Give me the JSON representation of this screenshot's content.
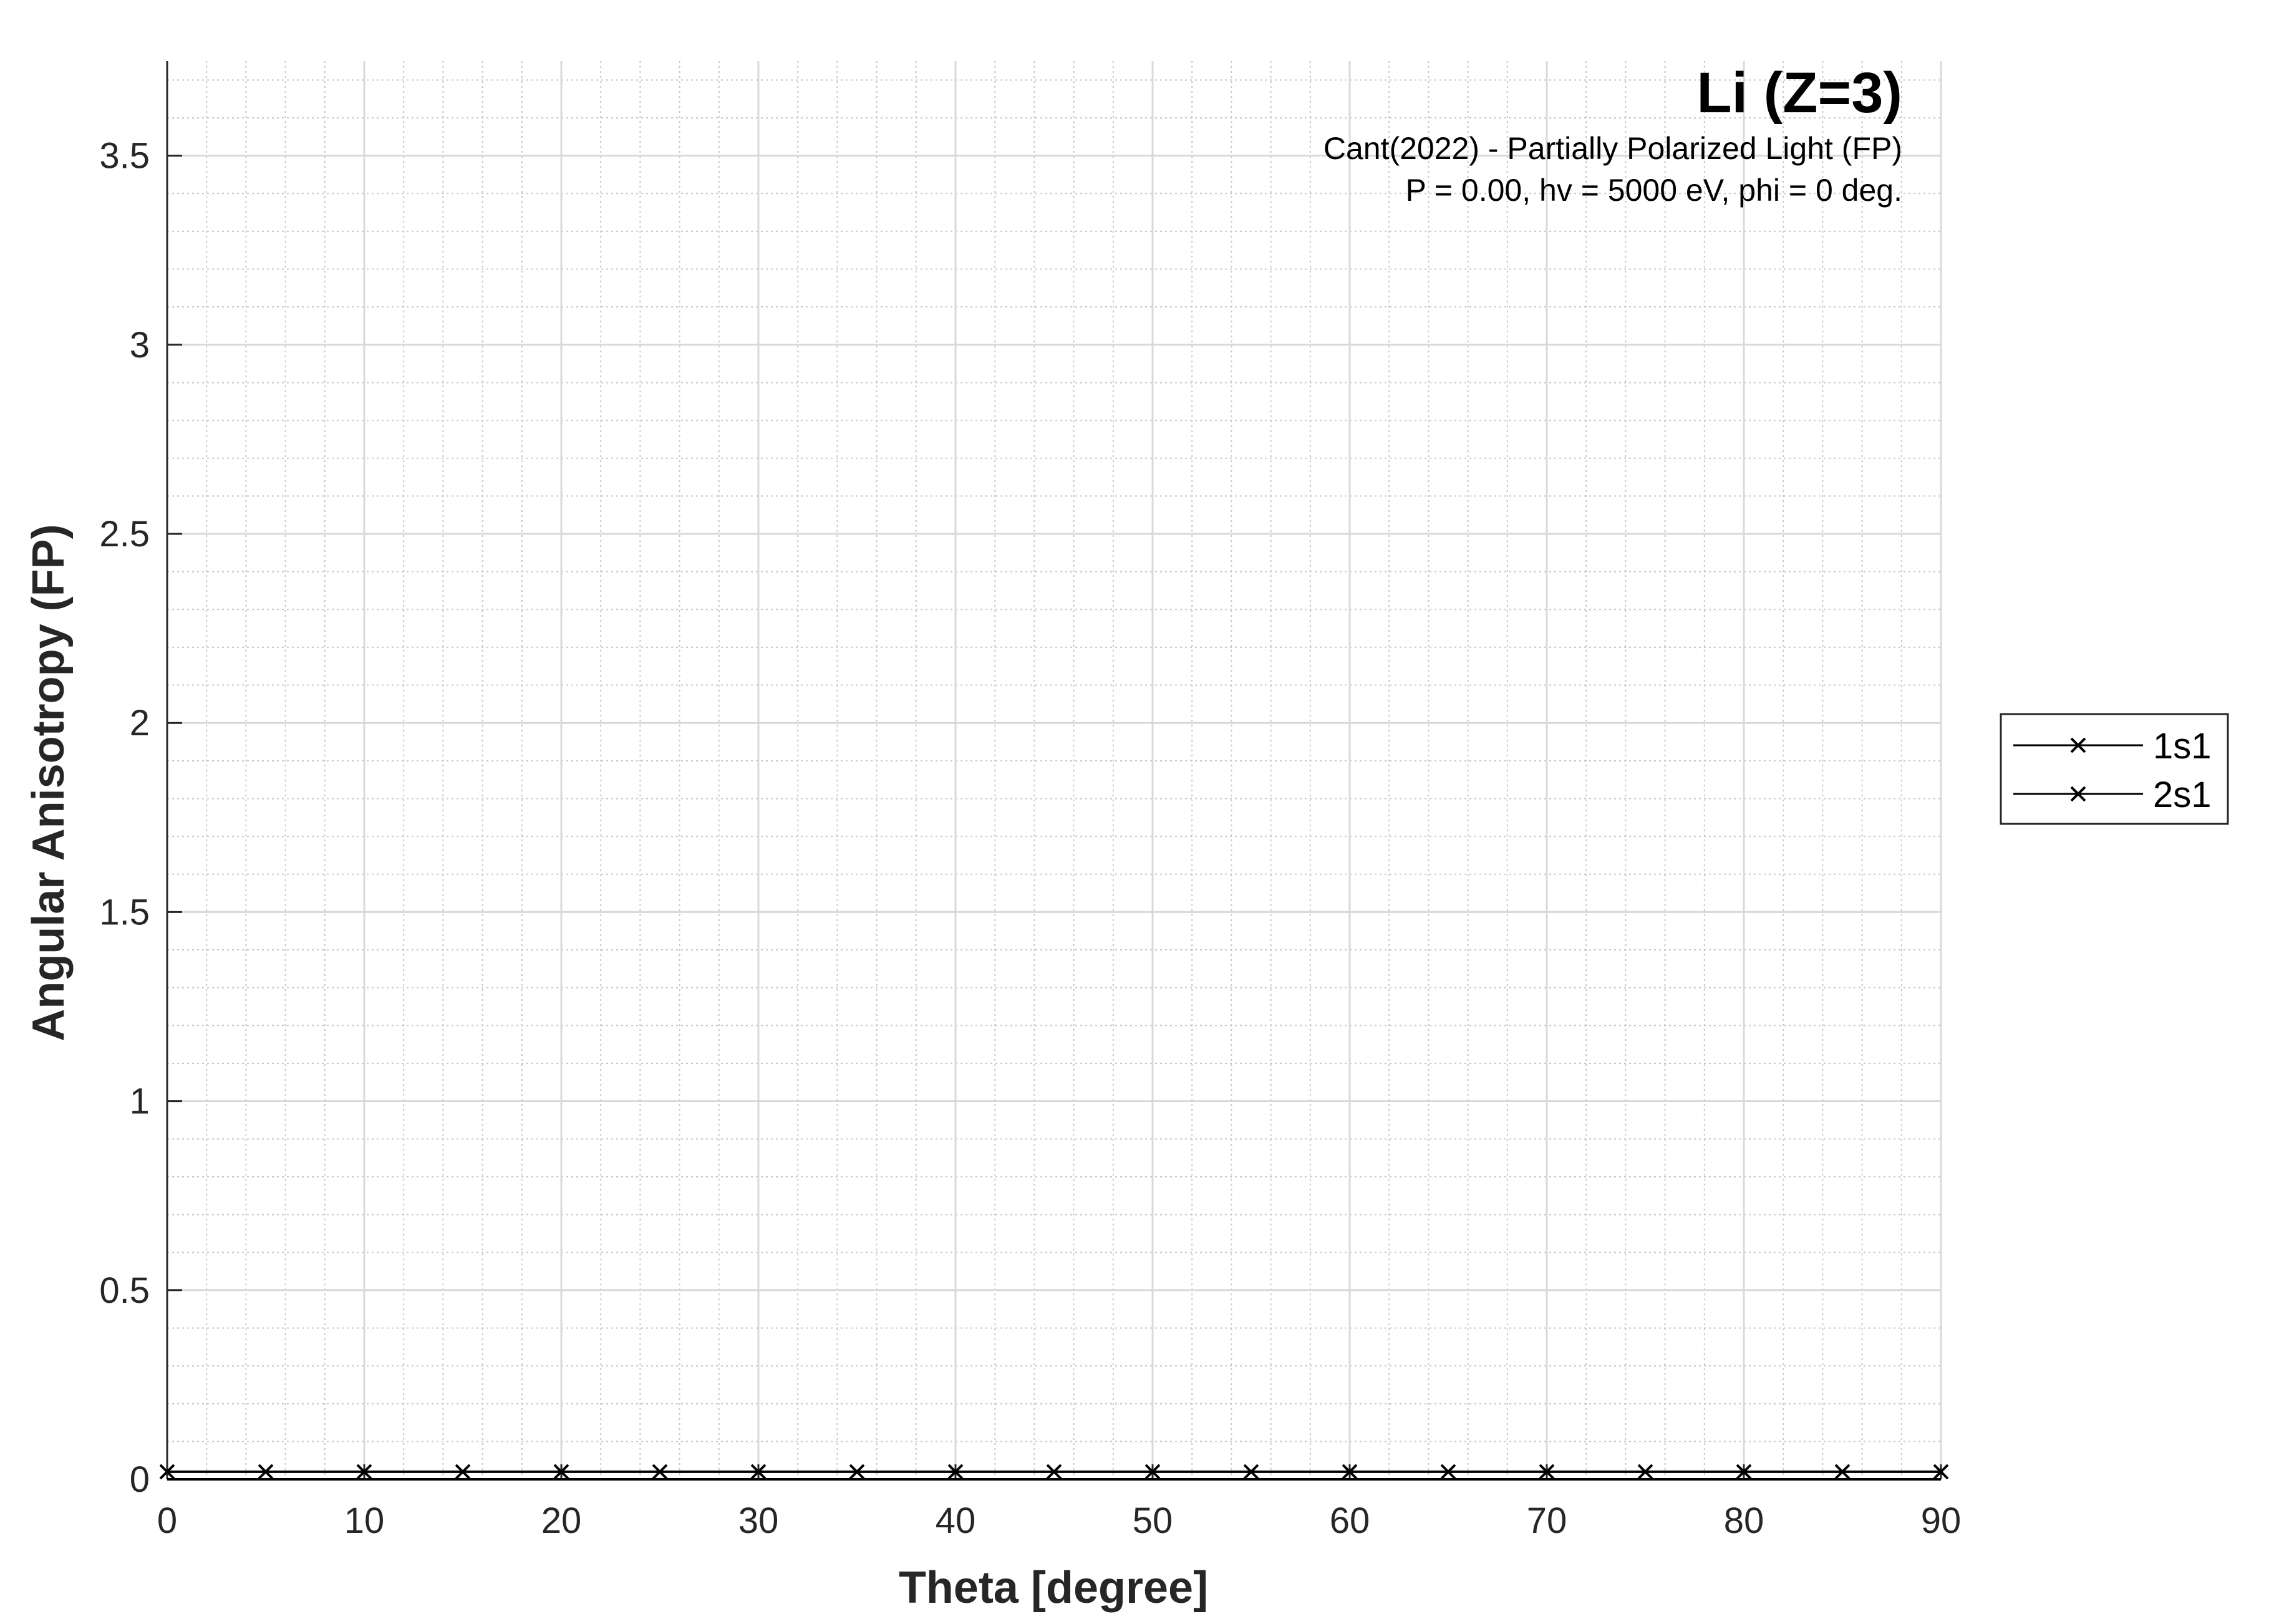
{
  "chart_data": {
    "type": "line",
    "title": "Li (Z=3)",
    "subtitle_lines": [
      "Cant(2022) - Partially Polarized Light (FP)",
      "P = 0.00, hv = 5000 eV, phi = 0 deg."
    ],
    "xlabel": "Theta [degree]",
    "ylabel": "Angular Anisotropy (FP)",
    "xlim": [
      0,
      90
    ],
    "ylim": [
      0,
      3.75
    ],
    "xticks": [
      0,
      10,
      20,
      30,
      40,
      50,
      60,
      70,
      80,
      90
    ],
    "yticks": [
      0,
      0.5,
      1,
      1.5,
      2,
      2.5,
      3,
      3.5
    ],
    "xtick_labels": [
      "0",
      "10",
      "20",
      "30",
      "40",
      "50",
      "60",
      "70",
      "80",
      "90"
    ],
    "ytick_labels": [
      "0",
      "0.5",
      "1",
      "1.5",
      "2",
      "2.5",
      "3",
      "3.5"
    ],
    "grid": true,
    "minor_grid": true,
    "legend_position": "outside-right",
    "x": [
      0,
      5,
      10,
      15,
      20,
      25,
      30,
      35,
      40,
      45,
      50,
      55,
      60,
      65,
      70,
      75,
      80,
      85,
      90
    ],
    "series": [
      {
        "name": "1s1",
        "values": [
          0.02,
          0.02,
          0.02,
          0.02,
          0.02,
          0.02,
          0.02,
          0.02,
          0.02,
          0.02,
          0.02,
          0.02,
          0.02,
          0.02,
          0.02,
          0.02,
          0.02,
          0.02,
          0.02
        ],
        "color": "#000000",
        "marker": "x"
      },
      {
        "name": "2s1",
        "values": [
          0.0,
          0.0,
          0.0,
          0.0,
          0.0,
          0.0,
          0.0,
          0.0,
          0.0,
          0.0,
          0.0,
          0.0,
          0.0,
          0.0,
          0.0,
          0.0,
          0.0,
          0.0,
          0.0
        ],
        "color": "#000000",
        "marker": "x",
        "markers_visible": false
      }
    ]
  },
  "colors": {
    "axis": "#262626",
    "major_grid": "#d9d9d9",
    "minor_grid": "#c8c8c8",
    "series": "#000000"
  }
}
